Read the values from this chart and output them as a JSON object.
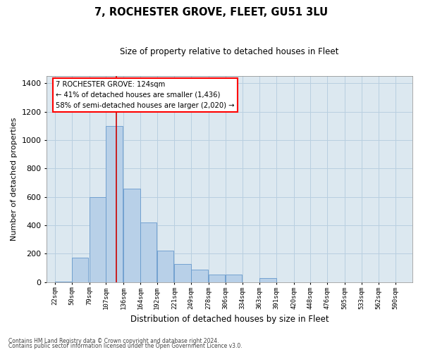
{
  "title": "7, ROCHESTER GROVE, FLEET, GU51 3LU",
  "subtitle": "Size of property relative to detached houses in Fleet",
  "xlabel": "Distribution of detached houses by size in Fleet",
  "ylabel": "Number of detached properties",
  "footnote1": "Contains HM Land Registry data © Crown copyright and database right 2024.",
  "footnote2": "Contains public sector information licensed under the Open Government Licence v3.0.",
  "annotation_line1": "7 ROCHESTER GROVE: 124sqm",
  "annotation_line2": "← 41% of detached houses are smaller (1,436)",
  "annotation_line3": "58% of semi-detached houses are larger (2,020) →",
  "bar_color": "#b8d0e8",
  "bar_edge_color": "#6699cc",
  "redline_color": "#cc0000",
  "background_color": "#ffffff",
  "plot_bg_color": "#dce8f0",
  "grid_color": "#b8cfe0",
  "bins": [
    22,
    50,
    79,
    107,
    136,
    164,
    192,
    221,
    249,
    278,
    306,
    334,
    363,
    391,
    420,
    448,
    476,
    505,
    533,
    562,
    590
  ],
  "counts": [
    5,
    175,
    600,
    1100,
    660,
    420,
    220,
    130,
    90,
    55,
    55,
    0,
    30,
    0,
    0,
    0,
    0,
    0,
    0,
    0
  ],
  "bin_width": 28,
  "property_size": 124,
  "ylim": [
    0,
    1450
  ],
  "xlim_left": 8,
  "xlim_right": 618,
  "yticks": [
    0,
    200,
    400,
    600,
    800,
    1000,
    1200,
    1400
  ]
}
